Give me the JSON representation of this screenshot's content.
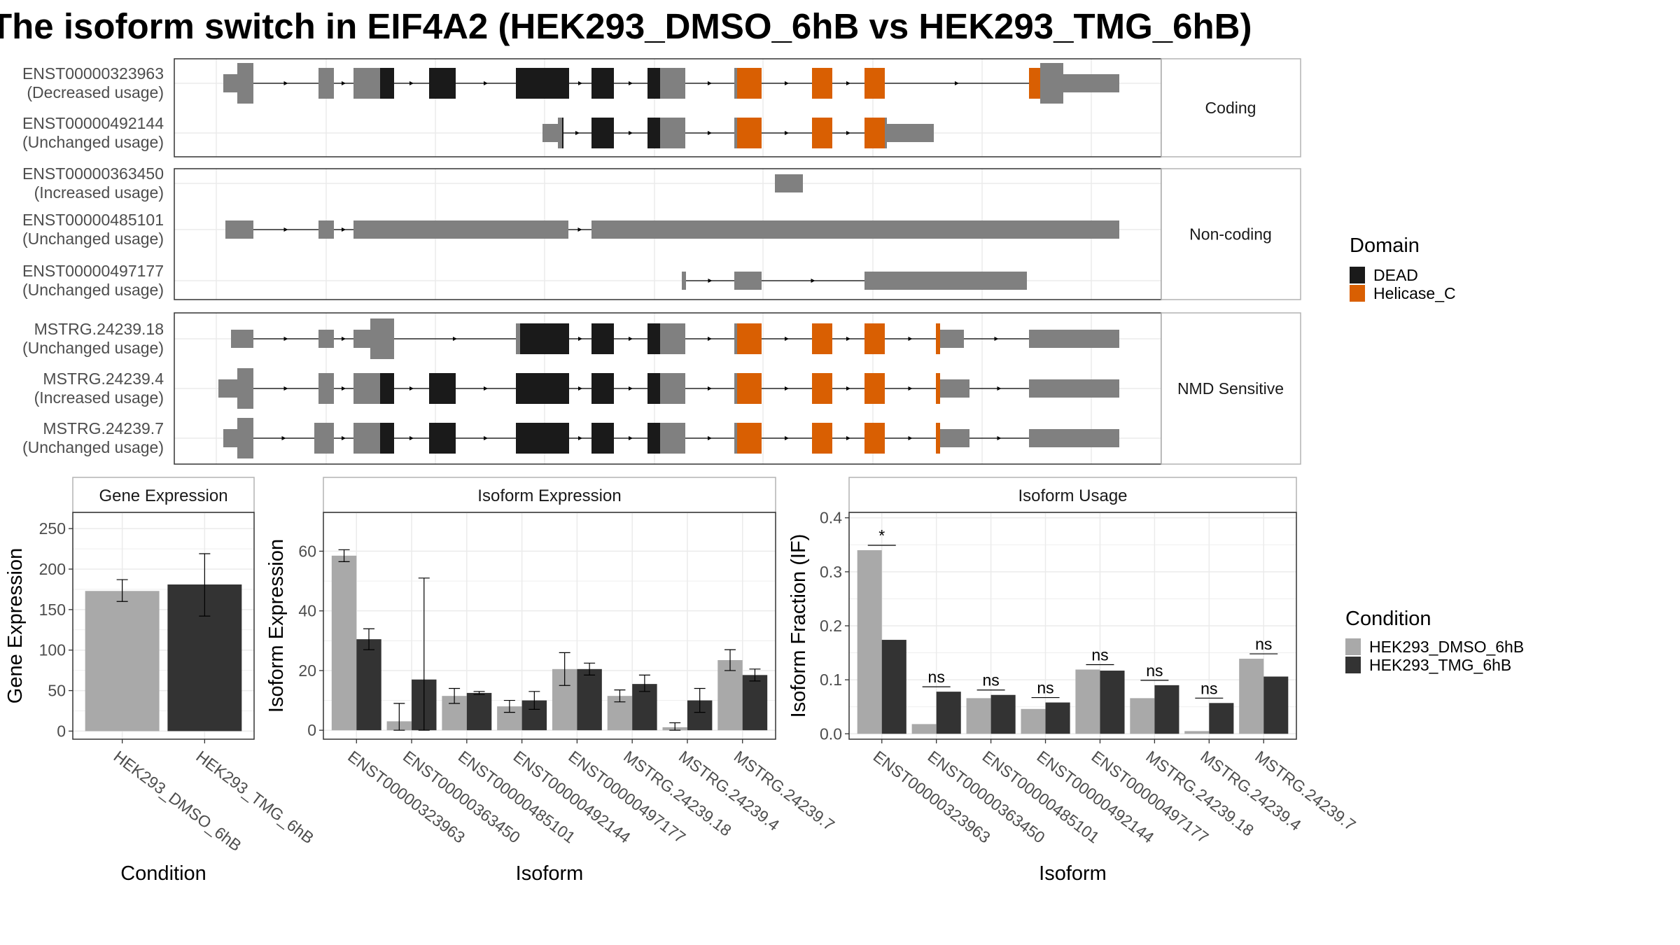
{
  "title": "The isoform switch in EIF4A2 (HEK293_DMSO_6hB vs HEK293_TMG_6hB)",
  "colors": {
    "dmso": "#a9a9a9",
    "tmg": "#333333",
    "exon_default": "#808080",
    "DEAD": "#1a1a1a",
    "Helicase_C": "#d95f02",
    "panel_border": "#333333",
    "strip_border": "#b3b3b3",
    "grid": "#ebebeb"
  },
  "transcript_plot": {
    "groups": [
      {
        "label": "Coding",
        "transcripts": [
          {
            "id": "ENST00000323963",
            "usage": "(Decreased usage)"
          },
          {
            "id": "ENST00000492144",
            "usage": "(Unchanged usage)"
          }
        ]
      },
      {
        "label": "Non-coding",
        "transcripts": [
          {
            "id": "ENST00000363450",
            "usage": "(Increased usage)"
          },
          {
            "id": "ENST00000485101",
            "usage": "(Unchanged usage)"
          },
          {
            "id": "ENST00000497177",
            "usage": "(Unchanged usage)"
          }
        ]
      },
      {
        "label": "NMD Sensitive",
        "transcripts": [
          {
            "id": "MSTRG.24239.18",
            "usage": "(Unchanged usage)"
          },
          {
            "id": "MSTRG.24239.4",
            "usage": "(Increased usage)"
          },
          {
            "id": "MSTRG.24239.7",
            "usage": "(Unchanged usage)"
          }
        ]
      }
    ],
    "domain_legend": {
      "title": "Domain",
      "items": [
        "DEAD",
        "Helicase_C"
      ]
    }
  },
  "chart_data": [
    {
      "type": "bar",
      "title": "Gene Expression",
      "xlabel": "Condition",
      "ylabel": "Gene Expression",
      "categories": [
        "HEK293_DMSO_6hB",
        "HEK293_TMG_6hB"
      ],
      "values": [
        173,
        181
      ],
      "error_low": [
        160,
        142
      ],
      "error_high": [
        187,
        219
      ],
      "ylim": [
        -10,
        270
      ],
      "yticks": [
        0,
        50,
        100,
        150,
        200,
        250
      ]
    },
    {
      "type": "bar",
      "title": "Isoform Expression",
      "xlabel": "Isoform",
      "ylabel": "Isoform Expression",
      "categories": [
        "ENST00000323963",
        "ENST00000363450",
        "ENST00000485101",
        "ENST00000492144",
        "ENST00000497177",
        "MSTRG.24239.18",
        "MSTRG.24239.4",
        "MSTRG.24239.7"
      ],
      "series": [
        {
          "name": "HEK293_DMSO_6hB",
          "values": [
            58.5,
            3,
            11.5,
            8,
            20.5,
            11.5,
            1,
            23.5
          ],
          "error_low": [
            56.5,
            0,
            9,
            6,
            15,
            9.5,
            0,
            20
          ],
          "error_high": [
            60.5,
            9,
            14,
            10,
            26,
            13.5,
            2.5,
            27
          ]
        },
        {
          "name": "HEK293_TMG_6hB",
          "values": [
            30.5,
            17,
            12.5,
            10,
            20.5,
            15.5,
            10,
            18.5
          ],
          "error_low": [
            27,
            0,
            12,
            7,
            18.5,
            13,
            6,
            16.5
          ],
          "error_high": [
            34,
            51,
            13,
            13,
            22.5,
            18.5,
            14,
            20.5
          ]
        }
      ],
      "ylim": [
        -3,
        73
      ],
      "yticks": [
        0,
        20,
        40,
        60
      ]
    },
    {
      "type": "bar",
      "title": "Isoform Usage",
      "xlabel": "Isoform",
      "ylabel": "Isoform Fraction (IF)",
      "categories": [
        "ENST00000323963",
        "ENST00000363450",
        "ENST00000485101",
        "ENST00000492144",
        "ENST00000497177",
        "MSTRG.24239.18",
        "MSTRG.24239.4",
        "MSTRG.24239.7"
      ],
      "series": [
        {
          "name": "HEK293_DMSO_6hB",
          "values": [
            0.34,
            0.018,
            0.066,
            0.046,
            0.119,
            0.066,
            0.005,
            0.139
          ]
        },
        {
          "name": "HEK293_TMG_6hB",
          "values": [
            0.174,
            0.078,
            0.072,
            0.058,
            0.117,
            0.09,
            0.057,
            0.106
          ]
        }
      ],
      "significance": [
        "*",
        "ns",
        "ns",
        "ns",
        "ns",
        "ns",
        "ns",
        "ns"
      ],
      "ylim": [
        -0.01,
        0.41
      ],
      "yticks": [
        0.0,
        0.1,
        0.2,
        0.3,
        0.4
      ],
      "ytick_labels": [
        "0.0",
        "0.1",
        "0.2",
        "0.3",
        "0.4"
      ]
    }
  ],
  "condition_legend": {
    "title": "Condition",
    "items": [
      "HEK293_DMSO_6hB",
      "HEK293_TMG_6hB"
    ]
  }
}
